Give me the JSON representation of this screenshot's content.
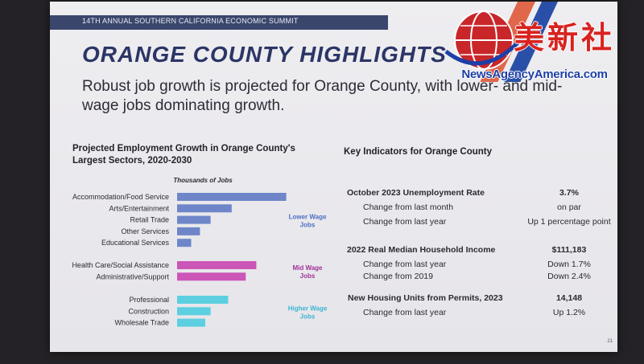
{
  "header": {
    "summit": "14TH ANNUAL SOUTHERN CALIFORNIA ECONOMIC SUMMIT",
    "title": "ORANGE COUNTY HIGHLIGHTS",
    "subtitle": "Robust job growth is projected for Orange County, with lower- and mid-wage jobs dominating growth."
  },
  "chart_data": {
    "type": "bar",
    "orientation": "horizontal",
    "title": "Projected Employment Growth in Orange County's Largest Sectors, 2020-2030",
    "axis_label": "Thousands of Jobs",
    "groups": [
      {
        "name": "Lower Wage Jobs",
        "color": "#6e86c9",
        "categories": [
          "Accommodation/Food Service",
          "Arts/Entertainment",
          "Retail Trade",
          "Other Services",
          "Educational Services"
        ],
        "values": [
          31,
          15.5,
          9.5,
          6.5,
          4
        ]
      },
      {
        "name": "Mid Wage Jobs",
        "color": "#cc55b8",
        "categories": [
          "Health Care/Social Assistance",
          "Administrative/Support"
        ],
        "values": [
          22.5,
          19.5
        ]
      },
      {
        "name": "Higher Wage Jobs",
        "color": "#5ccfe0",
        "categories": [
          "Professional",
          "Construction",
          "Wholesale Trade"
        ],
        "values": [
          14.5,
          9.5,
          8
        ]
      }
    ],
    "xlim": [
      0,
      32
    ]
  },
  "indicators": {
    "title": "Key Indicators for Orange County",
    "sections": [
      {
        "label": "October 2023 Unemployment Rate",
        "value": "3.7%",
        "rows": [
          {
            "label": "Change from last month",
            "value": "on par"
          },
          {
            "label": "Change from last year",
            "value": "Up 1 percentage point"
          }
        ]
      },
      {
        "label": "2022 Real Median Household Income",
        "value": "$111,183",
        "rows": [
          {
            "label": "Change from last year",
            "value": "Down 1.7%"
          },
          {
            "label": "Change from 2019",
            "value": "Down 2.4%"
          }
        ]
      },
      {
        "label": "New Housing Units from Permits, 2023",
        "value": "14,148",
        "rows": [
          {
            "label": "Change from last year",
            "value": "Up 1.2%"
          }
        ]
      }
    ]
  },
  "slide_number": "21",
  "watermark": {
    "chinese": "美新社",
    "text": "NewsAgencyAmerica.com"
  }
}
